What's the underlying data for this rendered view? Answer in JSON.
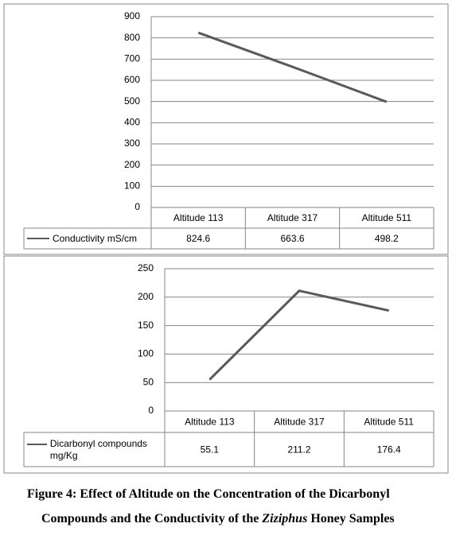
{
  "chart_data": [
    {
      "type": "line",
      "categories": [
        "Altitude 113",
        "Altitude 317",
        "Altitude 511"
      ],
      "series": [
        {
          "name": "Conductivity mS/cm",
          "color": "#595959",
          "values": [
            824.6,
            663.6,
            498.2
          ]
        }
      ],
      "ylim": [
        0,
        900
      ],
      "yticks": [
        0,
        100,
        200,
        300,
        400,
        500,
        600,
        700,
        800,
        900
      ],
      "grid": true
    },
    {
      "type": "line",
      "categories": [
        "Altitude 113",
        "Altitude 317",
        "Altitude 511"
      ],
      "series": [
        {
          "name": "Dicarbonyl compounds mg/Kg",
          "color": "#595959",
          "values": [
            55.1,
            211.2,
            176.4
          ]
        }
      ],
      "ylim": [
        0,
        250
      ],
      "yticks": [
        0,
        50,
        100,
        150,
        200,
        250
      ],
      "grid": true
    }
  ],
  "caption": {
    "prefix": "Figure 4:",
    "line1": "Effect of Altitude on the Concentration of the Dicarbonyl",
    "line2a": "Compounds and the Conductivity of the",
    "italic": "Ziziphus",
    "line2b": "Honey Samples"
  }
}
